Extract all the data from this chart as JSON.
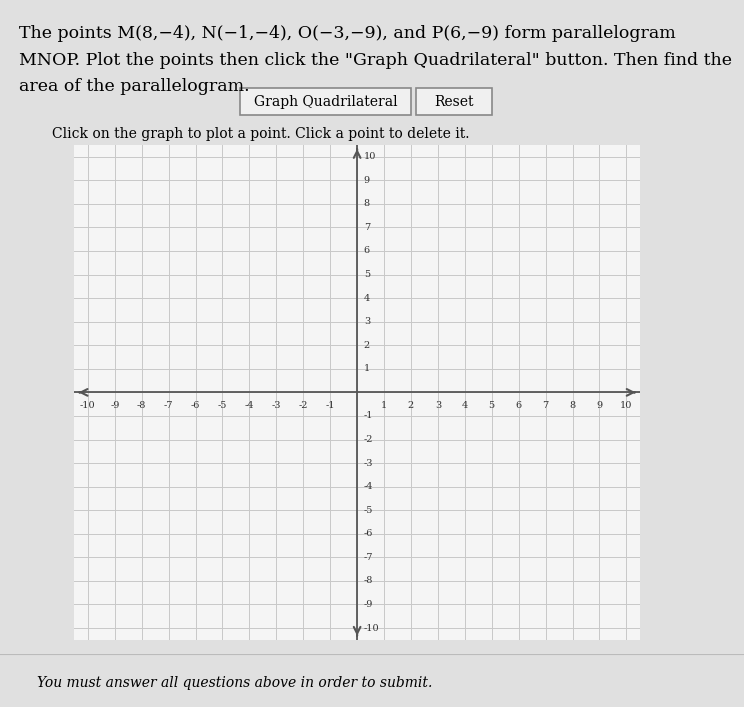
{
  "title_line1": "The points M(8,−4), N(−1,−4), O(−3,−9), and P(6,−9) form parallelogram",
  "title_line2": "MNOP. Plot the points then click the \"Graph Quadrilateral\" button. Then find the",
  "title_line3": "area of the parallelogram.",
  "button1_text": "Graph Quadrilateral",
  "button2_text": "Reset",
  "instruction_text": "Click on the graph to plot a point. Click a point to delete it.",
  "footer_text": "You must answer all questions above in order to submit.",
  "xmin": -10,
  "xmax": 10,
  "ymin": -10,
  "ymax": 10,
  "grid_color": "#c8c8c8",
  "axis_color": "#555555",
  "graph_bg_color": "#f5f5f5",
  "page_bg_color": "#e0e0e0",
  "title_fontsize": 12.5,
  "tick_fontsize": 7,
  "button_fontsize": 10,
  "instruction_fontsize": 10,
  "footer_fontsize": 10
}
